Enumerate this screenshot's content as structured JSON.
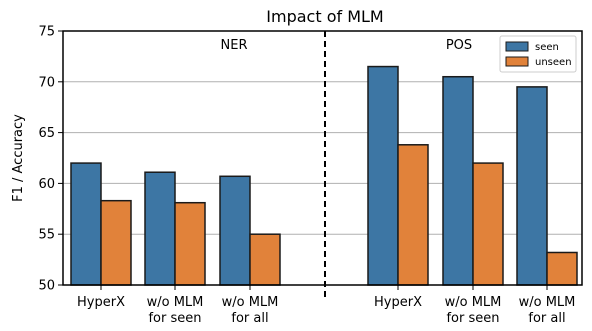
{
  "chart_data": {
    "type": "bar",
    "title": "Impact of MLM",
    "ylabel": "F1 / Accuracy",
    "xlabel": "",
    "ylim": [
      50,
      75
    ],
    "yticks": [
      50,
      55,
      60,
      65,
      70,
      75
    ],
    "grid": "horizontal",
    "legend_position": "top-right",
    "colors": {
      "seen": "#3d76a4",
      "unseen": "#e1823a"
    },
    "panels": [
      {
        "label": "NER",
        "categories": [
          [
            "HyperX"
          ],
          [
            "w/o MLM",
            "for seen"
          ],
          [
            "w/o MLM",
            "for all"
          ]
        ],
        "series": [
          {
            "name": "seen",
            "values": [
              62.0,
              61.1,
              60.7
            ]
          },
          {
            "name": "unseen",
            "values": [
              58.3,
              58.1,
              55.0
            ]
          }
        ]
      },
      {
        "label": "POS",
        "categories": [
          [
            "HyperX"
          ],
          [
            "w/o MLM",
            "for seen"
          ],
          [
            "w/o MLM",
            "for all"
          ]
        ],
        "series": [
          {
            "name": "seen",
            "values": [
              71.5,
              70.5,
              69.5
            ]
          },
          {
            "name": "unseen",
            "values": [
              63.8,
              62.0,
              53.2
            ]
          }
        ]
      }
    ],
    "legend": [
      "seen",
      "unseen"
    ]
  }
}
